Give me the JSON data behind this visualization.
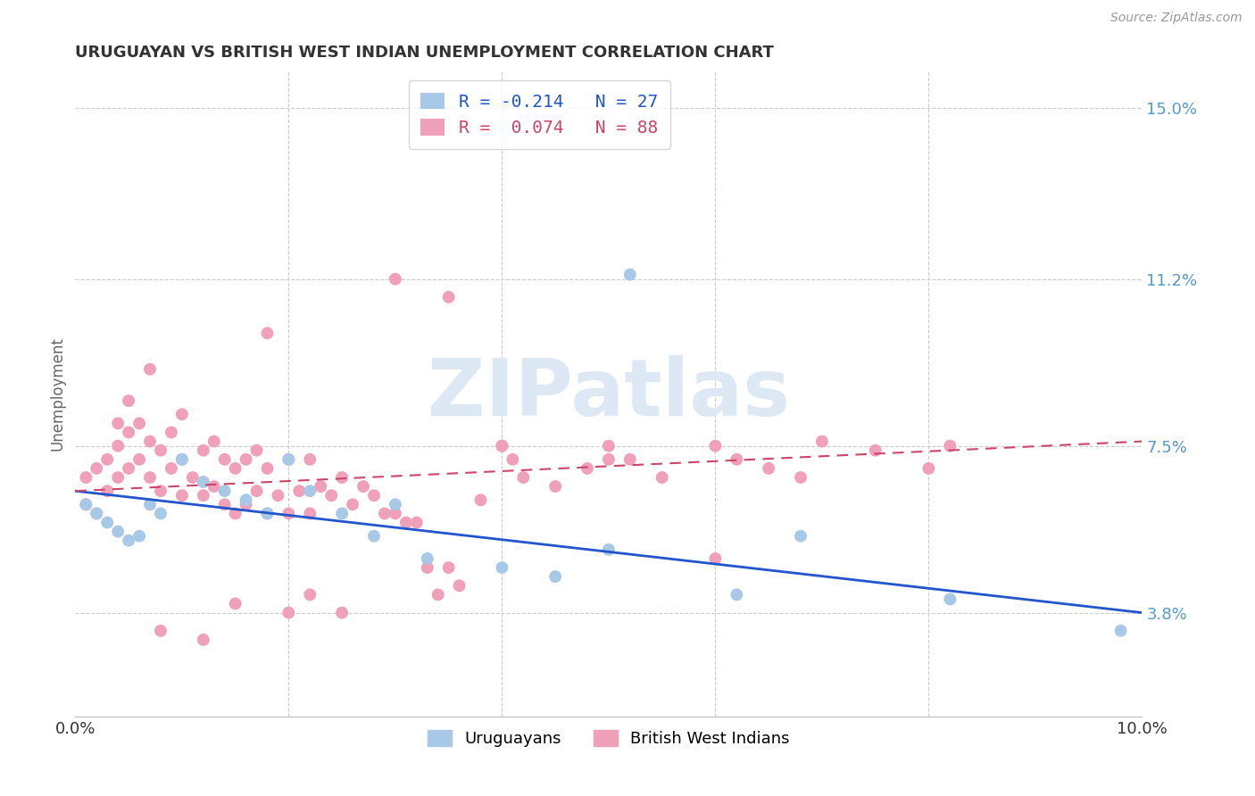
{
  "title": "URUGUAYAN VS BRITISH WEST INDIAN UNEMPLOYMENT CORRELATION CHART",
  "source": "Source: ZipAtlas.com",
  "ylabel": "Unemployment",
  "ytick_vals": [
    0.038,
    0.075,
    0.112,
    0.15
  ],
  "ytick_labels": [
    "3.8%",
    "7.5%",
    "11.2%",
    "15.0%"
  ],
  "xlim": [
    0.0,
    0.1
  ],
  "ylim": [
    0.015,
    0.158
  ],
  "blue_color": "#a8c8e8",
  "pink_color": "#f0a0b8",
  "blue_line_color": "#2255cc",
  "pink_line_color": "#cc4466",
  "watermark_text": "ZIPatlas",
  "watermark_color": "#dde8f5",
  "legend_text_blue": "R = -0.214   N = 27",
  "legend_text_pink": "R =  0.074   N = 88",
  "blue_line_start_y": 0.065,
  "blue_line_end_y": 0.038,
  "pink_line_start_y": 0.065,
  "pink_line_end_y": 0.076,
  "uru_x": [
    0.001,
    0.002,
    0.003,
    0.004,
    0.005,
    0.006,
    0.007,
    0.008,
    0.01,
    0.012,
    0.014,
    0.016,
    0.018,
    0.02,
    0.022,
    0.025,
    0.028,
    0.03,
    0.033,
    0.04,
    0.045,
    0.05,
    0.052,
    0.062,
    0.068,
    0.082,
    0.098
  ],
  "uru_y": [
    0.062,
    0.06,
    0.058,
    0.056,
    0.054,
    0.055,
    0.062,
    0.06,
    0.072,
    0.067,
    0.065,
    0.063,
    0.06,
    0.072,
    0.065,
    0.06,
    0.055,
    0.062,
    0.05,
    0.048,
    0.046,
    0.052,
    0.113,
    0.042,
    0.055,
    0.041,
    0.034
  ],
  "bwi_x": [
    0.001,
    0.001,
    0.002,
    0.002,
    0.003,
    0.003,
    0.004,
    0.004,
    0.004,
    0.005,
    0.005,
    0.005,
    0.006,
    0.006,
    0.007,
    0.007,
    0.007,
    0.008,
    0.008,
    0.009,
    0.009,
    0.01,
    0.01,
    0.01,
    0.011,
    0.012,
    0.012,
    0.013,
    0.013,
    0.014,
    0.014,
    0.015,
    0.015,
    0.016,
    0.016,
    0.017,
    0.017,
    0.018,
    0.018,
    0.019,
    0.02,
    0.02,
    0.021,
    0.022,
    0.022,
    0.023,
    0.024,
    0.025,
    0.026,
    0.027,
    0.028,
    0.029,
    0.03,
    0.031,
    0.032,
    0.033,
    0.034,
    0.035,
    0.036,
    0.038,
    0.04,
    0.041,
    0.042,
    0.045,
    0.048,
    0.05,
    0.052,
    0.055,
    0.06,
    0.062,
    0.065,
    0.068,
    0.07,
    0.075,
    0.08,
    0.082,
    0.03,
    0.035,
    0.04,
    0.018,
    0.022,
    0.025,
    0.05,
    0.06,
    0.015,
    0.02,
    0.008,
    0.012
  ],
  "bwi_y": [
    0.062,
    0.068,
    0.06,
    0.07,
    0.065,
    0.072,
    0.068,
    0.075,
    0.08,
    0.07,
    0.078,
    0.085,
    0.072,
    0.08,
    0.068,
    0.076,
    0.092,
    0.065,
    0.074,
    0.07,
    0.078,
    0.064,
    0.072,
    0.082,
    0.068,
    0.064,
    0.074,
    0.066,
    0.076,
    0.062,
    0.072,
    0.06,
    0.07,
    0.062,
    0.072,
    0.065,
    0.074,
    0.06,
    0.07,
    0.064,
    0.06,
    0.072,
    0.065,
    0.06,
    0.072,
    0.066,
    0.064,
    0.068,
    0.062,
    0.066,
    0.064,
    0.06,
    0.06,
    0.058,
    0.058,
    0.048,
    0.042,
    0.048,
    0.044,
    0.063,
    0.075,
    0.072,
    0.068,
    0.066,
    0.07,
    0.075,
    0.072,
    0.068,
    0.075,
    0.072,
    0.07,
    0.068,
    0.076,
    0.074,
    0.07,
    0.075,
    0.112,
    0.108,
    0.075,
    0.1,
    0.042,
    0.038,
    0.072,
    0.05,
    0.04,
    0.038,
    0.034,
    0.032
  ]
}
